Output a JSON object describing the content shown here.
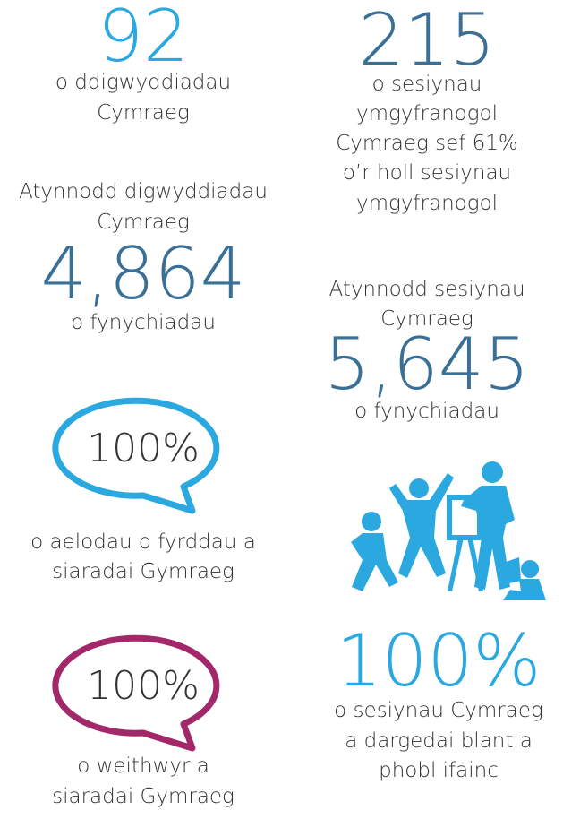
{
  "left": {
    "events": {
      "number": "92",
      "lines": [
        "o ddigwyddiadau",
        "Cymraeg"
      ]
    },
    "event_attendance": {
      "intro": [
        "Atynnodd digwyddiadau",
        "Cymraeg"
      ],
      "number": "4,864",
      "lines": [
        "o fynychiadau"
      ]
    },
    "board_members": {
      "bubble": "100%",
      "lines": [
        "o aelodau o fyrddau a",
        "siaradai Gymraeg"
      ]
    },
    "staff": {
      "bubble": "100%",
      "lines": [
        "o weithwyr a",
        "siaradai Gymraeg"
      ]
    }
  },
  "right": {
    "sessions": {
      "number": "215",
      "lines": [
        "o sesiynau",
        "ymgyfranogol",
        "Cymraeg sef 61%",
        "o’r holl sesiynau",
        "ymgyfranogol"
      ]
    },
    "session_attendance": {
      "intro": [
        "Atynnodd sesiynau",
        "Cymraeg"
      ],
      "number": "5,645",
      "lines": [
        "o fynychiadau"
      ]
    },
    "young_people": {
      "number": "100%",
      "lines": [
        "o sesiynau Cymraeg",
        "a dargedai blant a",
        "phobl ifainc"
      ]
    }
  }
}
